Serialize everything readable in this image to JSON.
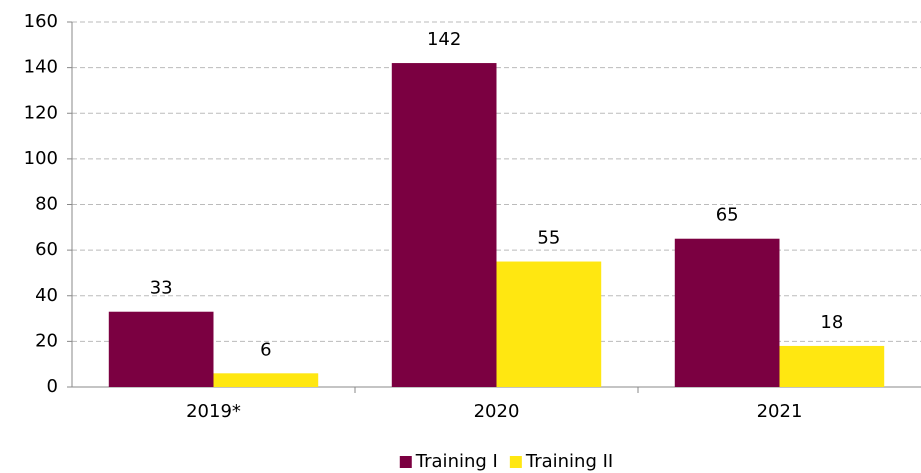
{
  "chart_data": {
    "type": "bar",
    "categories": [
      "2019*",
      "2020",
      "2021"
    ],
    "series": [
      {
        "name": "Training I",
        "color": "#7b0041",
        "values": [
          33,
          142,
          65
        ]
      },
      {
        "name": "Training II",
        "color": "#ffe711",
        "values": [
          6,
          55,
          18
        ]
      }
    ],
    "ylim": [
      0,
      160
    ],
    "yticks": [
      0,
      20,
      40,
      60,
      80,
      100,
      120,
      140,
      160
    ],
    "grid": true,
    "legend": "bottom"
  }
}
